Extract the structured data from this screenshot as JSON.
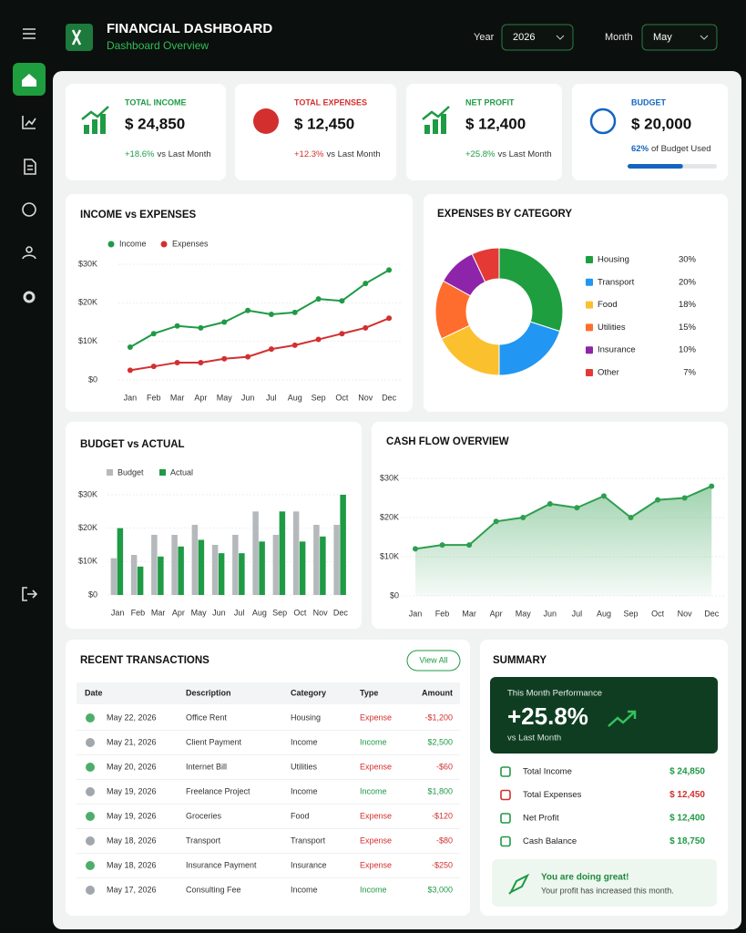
{
  "header": {
    "title": "FINANCIAL DASHBOARD",
    "subtitle": "Dashboard Overview",
    "year_label": "Year",
    "year": "2026",
    "month_label": "Month",
    "month": "May"
  },
  "kpis": [
    {
      "label": "TOTAL INCOME",
      "value": "$ 24,850",
      "change": "+18.6%",
      "note": "vs Last Month",
      "color": "#1f9a45"
    },
    {
      "label": "TOTAL EXPENSES",
      "value": "$ 12,450",
      "change": "+12.3%",
      "note": "vs Last Month",
      "color": "#d32f2f"
    },
    {
      "label": "NET PROFIT",
      "value": "$ 12,400",
      "change": "+25.8%",
      "note": "vs Last Month",
      "color": "#1f9a45"
    },
    {
      "label": "BUDGET",
      "value": "$ 20,000",
      "used": {
        "value": 62,
        "label": "62%"
      },
      "note": "of Budget Used",
      "color": "#1565c0"
    }
  ],
  "chart_data": [
    {
      "type": "line",
      "title": "INCOME vs EXPENSES",
      "grid": true,
      "categories": [
        "Jan",
        "Feb",
        "Mar",
        "Apr",
        "May",
        "Jun",
        "Jul",
        "Aug",
        "Sep",
        "Oct",
        "Nov",
        "Dec"
      ],
      "series": [
        {
          "name": "Income",
          "color": "#1f9a45",
          "values": [
            8500,
            12000,
            14000,
            13500,
            15000,
            18000,
            17000,
            17500,
            21000,
            20500,
            25000,
            28500
          ]
        },
        {
          "name": "Expenses",
          "color": "#d32f2f",
          "values": [
            2500,
            3500,
            4500,
            4500,
            5500,
            6000,
            8000,
            9000,
            10500,
            12000,
            13500,
            16000
          ]
        }
      ],
      "ylim": [
        0,
        30000
      ],
      "yticks": [
        {
          "value": 0,
          "label": "$0"
        },
        {
          "value": 10000,
          "label": "$10K"
        },
        {
          "value": 20000,
          "label": "$20K"
        },
        {
          "value": 30000,
          "label": "$30K"
        }
      ]
    },
    {
      "type": "donut",
      "title": "EXPENSES BY CATEGORY",
      "categories": [
        "Housing",
        "Transport",
        "Food",
        "Utilities",
        "Insurance",
        "Other"
      ],
      "values": [
        30,
        20,
        18,
        15,
        10,
        7
      ],
      "value_labels": [
        "30%",
        "20%",
        "18%",
        "15%",
        "10%",
        "7%"
      ],
      "colors": [
        "#1e9e3e",
        "#2196f3",
        "#fbc02d",
        "#ff6d2e",
        "#8e24aa",
        "#e53935"
      ]
    },
    {
      "type": "bar",
      "title": "BUDGET vs ACTUAL",
      "grid": true,
      "categories": [
        "Jan",
        "Feb",
        "Mar",
        "Apr",
        "May",
        "Jun",
        "Jul",
        "Aug",
        "Sep",
        "Oct",
        "Nov",
        "Dec"
      ],
      "series": [
        {
          "name": "Budget",
          "color": "#b5b9bc",
          "values": [
            11000,
            12000,
            18000,
            18000,
            21000,
            15000,
            18000,
            25000,
            18000,
            25000,
            21000,
            21000
          ]
        },
        {
          "name": "Actual",
          "color": "#1f9a45",
          "values": [
            20000,
            8500,
            11500,
            14500,
            16500,
            12500,
            12500,
            16000,
            25000,
            16000,
            17500,
            30000
          ]
        }
      ],
      "ylim": [
        0,
        30000
      ],
      "yticks": [
        {
          "value": 0,
          "label": "$0"
        },
        {
          "value": 10000,
          "label": "$10K"
        },
        {
          "value": 20000,
          "label": "$20K"
        },
        {
          "value": 30000,
          "label": "$30K"
        }
      ]
    },
    {
      "type": "area",
      "title": "CASH FLOW OVERVIEW",
      "grid": true,
      "color": "#2e9e4f",
      "categories": [
        "Jan",
        "Feb",
        "Mar",
        "Apr",
        "May",
        "Jun",
        "Jul",
        "Aug",
        "Sep",
        "Oct",
        "Nov",
        "Dec"
      ],
      "values": [
        12000,
        13000,
        13000,
        19000,
        20000,
        23500,
        22500,
        25500,
        20000,
        24500,
        25000,
        28000
      ],
      "ylim": [
        0,
        30000
      ],
      "yticks": [
        {
          "value": 0,
          "label": "$0"
        },
        {
          "value": 10000,
          "label": "$10K"
        },
        {
          "value": 20000,
          "label": "$20K"
        },
        {
          "value": 30000,
          "label": "$30K"
        }
      ]
    }
  ],
  "transactions": {
    "title": "RECENT TRANSACTIONS",
    "button": "View All",
    "columns": [
      "Date",
      "Description",
      "Category",
      "Type",
      "Amount"
    ],
    "type_colors": {
      "Expense": "#d32f2f",
      "Income": "#1f9a45"
    },
    "rows": [
      [
        "May 22, 2026",
        "Office Rent",
        "Housing",
        "Expense",
        "-$1,200"
      ],
      [
        "May 21, 2026",
        "Client Payment",
        "Income",
        "Income",
        "$2,500"
      ],
      [
        "May 20, 2026",
        "Internet Bill",
        "Utilities",
        "Expense",
        "-$60"
      ],
      [
        "May 19, 2026",
        "Freelance Project",
        "Income",
        "Income",
        "$1,800"
      ],
      [
        "May 19, 2026",
        "Groceries",
        "Food",
        "Expense",
        "-$120"
      ],
      [
        "May 18, 2026",
        "Transport",
        "Transport",
        "Expense",
        "-$80"
      ],
      [
        "May 18, 2026",
        "Insurance Payment",
        "Insurance",
        "Expense",
        "-$250"
      ],
      [
        "May 17, 2026",
        "Consulting Fee",
        "Income",
        "Income",
        "$3,000"
      ]
    ]
  },
  "summary": {
    "title": "SUMMARY",
    "performance": {
      "title": "This Month Performance",
      "value": "+25.8%",
      "note": "vs Last Month"
    },
    "items": [
      {
        "label": "Total Income",
        "value": "$ 24,850",
        "color": "#1f9a45"
      },
      {
        "label": "Total Expenses",
        "value": "$ 12,450",
        "color": "#d32f2f"
      },
      {
        "label": "Net Profit",
        "value": "$ 12,400",
        "color": "#1f9a45"
      },
      {
        "label": "Cash Balance",
        "value": "$ 18,750",
        "color": "#1f9a45"
      }
    ],
    "message": {
      "title": "You are doing great!",
      "text": "Your profit has increased this month."
    }
  }
}
